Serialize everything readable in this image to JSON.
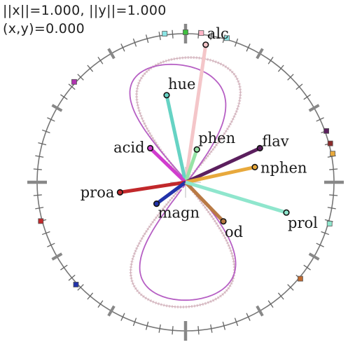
{
  "readout": {
    "norms": "||x||=1.000, ||y||=1.000",
    "dot": "(x,y)=0.000"
  },
  "vectors": [
    {
      "name": "alc",
      "color": "#f4c6c9",
      "dx": 0.16,
      "dy": 1.09
    },
    {
      "name": "hue",
      "color": "#66d3c4",
      "dx": -0.15,
      "dy": 0.69
    },
    {
      "name": "phen",
      "color": "#96e3a6",
      "dx": 0.09,
      "dy": 0.26
    },
    {
      "name": "flav",
      "color": "#5b1f5e",
      "dx": 0.59,
      "dy": 0.27
    },
    {
      "name": "nphen",
      "color": "#e8a93c",
      "dx": 0.55,
      "dy": 0.12
    },
    {
      "name": "acid",
      "color": "#d03cce",
      "dx": -0.28,
      "dy": 0.27
    },
    {
      "name": "proa",
      "color": "#c1282b",
      "dx": -0.52,
      "dy": -0.08
    },
    {
      "name": "magn",
      "color": "#2233aa",
      "dx": -0.23,
      "dy": -0.17
    },
    {
      "name": "od",
      "color": "#b97a45",
      "dx": 0.3,
      "dy": -0.31
    },
    {
      "name": "prol",
      "color": "#8fe6cd",
      "dx": 0.8,
      "dy": -0.24
    }
  ],
  "markers": [
    {
      "angle": 90,
      "color": "#3fbf3f"
    },
    {
      "angle": 84,
      "color": "#ffb6c8"
    },
    {
      "angle": 98,
      "color": "#8be5e5"
    },
    {
      "angle": 74,
      "color": "#8be5e5"
    },
    {
      "angle": 20,
      "color": "#5b1f5e"
    },
    {
      "angle": 15,
      "color": "#8b2a2a"
    },
    {
      "angle": 11,
      "color": "#e8a93c"
    },
    {
      "angle": -16,
      "color": "#8fe6cd"
    },
    {
      "angle": -40,
      "color": "#c06a30"
    },
    {
      "angle": 138,
      "color": "#b034b0"
    },
    {
      "angle": 195,
      "color": "#c1282b"
    },
    {
      "angle": 223,
      "color": "#2233aa"
    }
  ]
}
